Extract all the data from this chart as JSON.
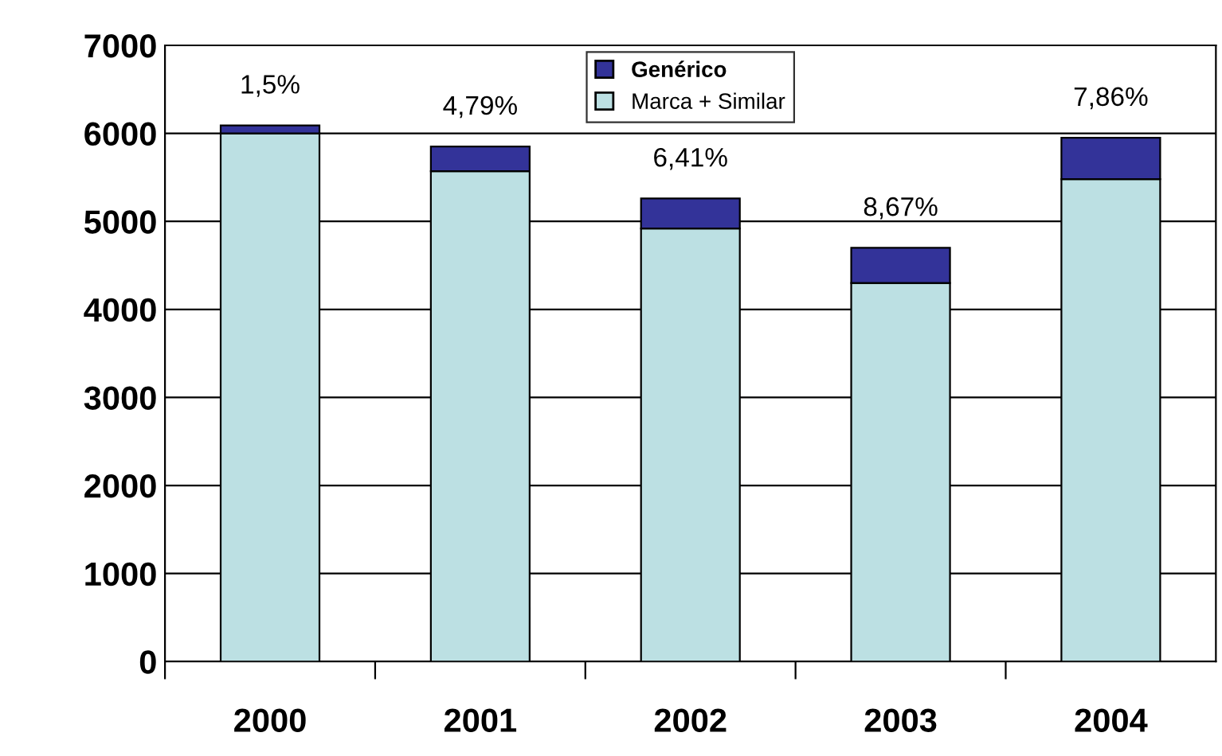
{
  "chart_data": {
    "type": "bar",
    "stacked": true,
    "categories": [
      "2000",
      "2001",
      "2002",
      "2003",
      "2004"
    ],
    "series": [
      {
        "name": "Marca + Similar",
        "color": "#bce0e3",
        "values": [
          6000,
          5570,
          4920,
          4300,
          5480
        ]
      },
      {
        "name": "Genérico",
        "color": "#333399",
        "values": [
          90,
          280,
          340,
          400,
          470
        ]
      }
    ],
    "annotations": [
      {
        "text": "1,5%",
        "x": "2000",
        "y": 6090
      },
      {
        "text": "4,79%",
        "x": "2001",
        "y": 5850
      },
      {
        "text": "6,41%",
        "x": "2002",
        "y": 5260
      },
      {
        "text": "8,67%",
        "x": "2003",
        "y": 4700
      },
      {
        "text": "7,86%",
        "x": "2004",
        "y": 5950
      }
    ],
    "ylim": [
      0,
      7000
    ],
    "yticks": [
      0,
      1000,
      2000,
      3000,
      4000,
      5000,
      6000,
      7000
    ],
    "grid": "y",
    "legend": "top"
  }
}
